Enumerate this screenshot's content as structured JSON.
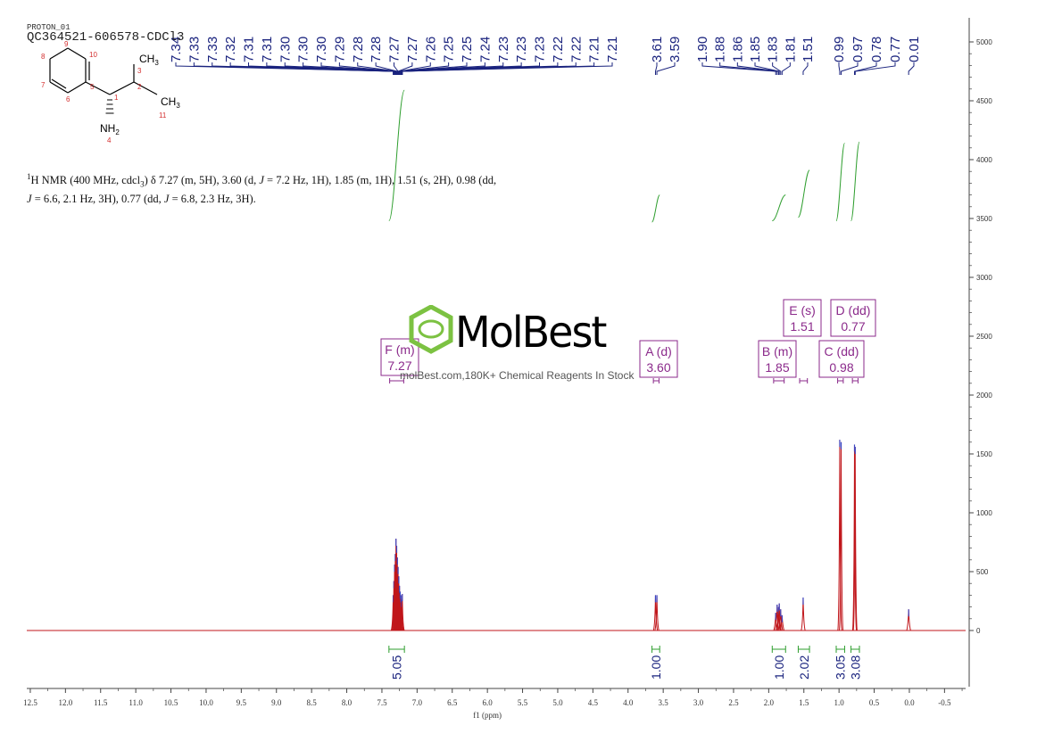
{
  "header": {
    "experiment": "PROTON_01",
    "sample_id": "QC364521-606578-CDCl3"
  },
  "structure": {
    "atoms": {
      "ch3_top": "CH",
      "ch3_top_sub": "3",
      "ch3_right": "CH",
      "ch3_right_sub": "3",
      "nh2": "NH",
      "nh2_sub": "2"
    },
    "numbers": [
      "9",
      "10",
      "8",
      "5",
      "7",
      "6",
      "1",
      "2",
      "3",
      "11",
      "4"
    ]
  },
  "summary_text": {
    "part1": "1",
    "part2": "H NMR (400 MHz, cdcl",
    "part3": "3",
    "part4": ") δ 7.27 (m, 5H), 3.60 (d, ",
    "j1": "J",
    "part5": " = 7.2 Hz, 1H), 1.85 (m, 1H), 1.51 (s, 2H), 0.98 (dd,",
    "j2": "J",
    "part6": " = 6.6, 2.1 Hz, 3H), 0.77 (dd, ",
    "j3": "J",
    "part7": " = 6.8, 2.3 Hz, 3H)."
  },
  "watermark": {
    "brand": "MolBest",
    "tagline": "molBest.com,180K+ Chemical Reagents In Stock"
  },
  "colors": {
    "spectrum": "#c0161b",
    "peak_labels": "#1a237e",
    "integral": "#2e9e2e",
    "multiplet_box": "#8b2a8b",
    "axis": "#444444",
    "logo_green": "#7cc242"
  },
  "chart_data": {
    "type": "line",
    "title": "",
    "xlabel": "f1 (ppm)",
    "ylabel": "",
    "xlim": [
      12.5,
      -0.8
    ],
    "ylim": [
      -500,
      5200
    ],
    "x_ticks": [
      "12.5",
      "12.0",
      "11.5",
      "11.0",
      "10.5",
      "10.0",
      "9.5",
      "9.0",
      "8.5",
      "8.0",
      "7.5",
      "7.0",
      "6.5",
      "6.0",
      "5.5",
      "5.0",
      "4.5",
      "4.0",
      "3.5",
      "3.0",
      "2.5",
      "2.0",
      "1.5",
      "1.0",
      "0.5",
      "0.0",
      "-0.5"
    ],
    "y_ticks": [
      "5000",
      "4500",
      "4000",
      "3500",
      "3000",
      "2500",
      "2000",
      "1500",
      "1000",
      "500",
      "0"
    ],
    "peak_labels": [
      "7.34",
      "7.33",
      "7.33",
      "7.32",
      "7.31",
      "7.31",
      "7.30",
      "7.30",
      "7.30",
      "7.29",
      "7.28",
      "7.28",
      "7.27",
      "7.27",
      "7.26",
      "7.25",
      "7.25",
      "7.24",
      "7.23",
      "7.23",
      "7.23",
      "7.22",
      "7.22",
      "7.21",
      "7.21",
      "3.61",
      "3.59",
      "1.90",
      "1.88",
      "1.86",
      "1.85",
      "1.83",
      "1.81",
      "1.51",
      "0.99",
      "0.97",
      "0.78",
      "0.77",
      "0.01"
    ],
    "peaks": [
      {
        "ppm": 7.34,
        "height": 300
      },
      {
        "ppm": 7.33,
        "height": 420
      },
      {
        "ppm": 7.32,
        "height": 560
      },
      {
        "ppm": 7.31,
        "height": 650
      },
      {
        "ppm": 7.3,
        "height": 780
      },
      {
        "ppm": 7.29,
        "height": 720
      },
      {
        "ppm": 7.28,
        "height": 620
      },
      {
        "ppm": 7.27,
        "height": 540
      },
      {
        "ppm": 7.26,
        "height": 460
      },
      {
        "ppm": 7.25,
        "height": 380
      },
      {
        "ppm": 7.24,
        "height": 330
      },
      {
        "ppm": 7.23,
        "height": 300
      },
      {
        "ppm": 7.22,
        "height": 260
      },
      {
        "ppm": 7.21,
        "height": 310
      },
      {
        "ppm": 3.61,
        "height": 300
      },
      {
        "ppm": 3.59,
        "height": 300
      },
      {
        "ppm": 1.9,
        "height": 150
      },
      {
        "ppm": 1.88,
        "height": 220
      },
      {
        "ppm": 1.86,
        "height": 200
      },
      {
        "ppm": 1.85,
        "height": 230
      },
      {
        "ppm": 1.83,
        "height": 180
      },
      {
        "ppm": 1.81,
        "height": 130
      },
      {
        "ppm": 1.51,
        "height": 280
      },
      {
        "ppm": 0.99,
        "height": 1620
      },
      {
        "ppm": 0.97,
        "height": 1600
      },
      {
        "ppm": 0.78,
        "height": 1580
      },
      {
        "ppm": 0.77,
        "height": 1560
      },
      {
        "ppm": 0.01,
        "height": 180
      }
    ],
    "integrals": [
      {
        "from": 7.4,
        "to": 7.18,
        "value": "5.05",
        "y_start": 3480,
        "y_end": 4590
      },
      {
        "from": 3.66,
        "to": 3.55,
        "value": "1.00",
        "y_start": 3470,
        "y_end": 3700
      },
      {
        "from": 1.95,
        "to": 1.76,
        "value": "1.00",
        "y_start": 3480,
        "y_end": 3700
      },
      {
        "from": 1.58,
        "to": 1.42,
        "value": "2.02",
        "y_start": 3510,
        "y_end": 3910
      },
      {
        "from": 1.04,
        "to": 0.92,
        "value": "3.05",
        "y_start": 3480,
        "y_end": 4140
      },
      {
        "from": 0.83,
        "to": 0.71,
        "value": "3.08",
        "y_start": 3480,
        "y_end": 4150
      }
    ],
    "multiplets": [
      {
        "letter": "F (m)",
        "shift": "7.27",
        "from": 7.39,
        "to": 7.19
      },
      {
        "letter": "A (d)",
        "shift": "3.60",
        "from": 3.64,
        "to": 3.56
      },
      {
        "letter": "B (m)",
        "shift": "1.85",
        "from": 1.93,
        "to": 1.78
      },
      {
        "letter": "E (s)",
        "shift": "1.51",
        "from": 1.56,
        "to": 1.45
      },
      {
        "letter": "C (dd)",
        "shift": "0.98",
        "from": 1.02,
        "to": 0.94
      },
      {
        "letter": "D (dd)",
        "shift": "0.77",
        "from": 0.81,
        "to": 0.73
      }
    ]
  }
}
